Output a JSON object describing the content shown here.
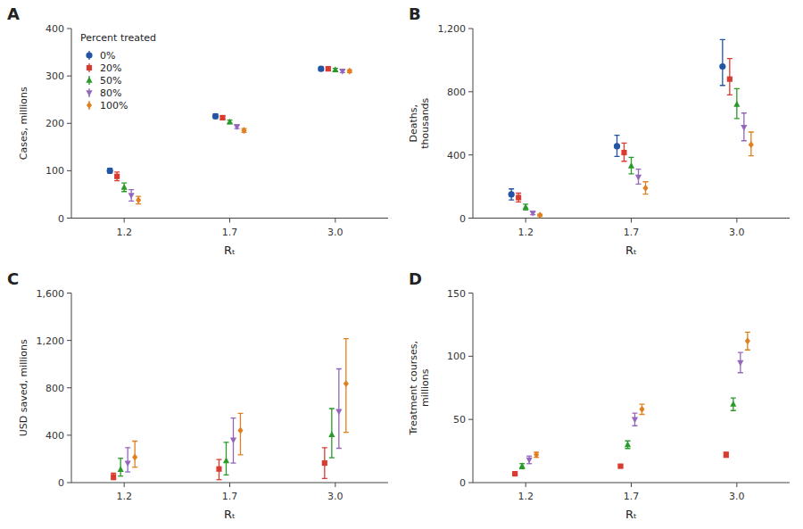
{
  "chart_data": [
    {
      "type": "scatter",
      "title": "A",
      "xlabel": "Rₜ",
      "ylabel": "Cases, millions",
      "categories": [
        "1.2",
        "1.7",
        "3.0"
      ],
      "ylim": [
        0,
        400
      ],
      "yticks": [
        0,
        100,
        200,
        300,
        400
      ],
      "grid": false,
      "legend": "upper left",
      "legend_title": "Percent treated",
      "series": [
        {
          "name": "0%",
          "color": "#2255a4",
          "marker": "circle",
          "values": [
            100,
            215,
            315
          ],
          "error_low": [
            5,
            5,
            4
          ],
          "error_high": [
            5,
            5,
            4
          ]
        },
        {
          "name": "20%",
          "color": "#d93b31",
          "marker": "square",
          "values": [
            88,
            212,
            315
          ],
          "error_low": [
            9,
            4,
            4
          ],
          "error_high": [
            9,
            4,
            4
          ]
        },
        {
          "name": "50%",
          "color": "#2a9a2a",
          "marker": "triangle-up",
          "values": [
            65,
            203,
            313
          ],
          "error_low": [
            9,
            4,
            3
          ],
          "error_high": [
            9,
            4,
            3
          ]
        },
        {
          "name": "80%",
          "color": "#9467bd",
          "marker": "triangle-down",
          "values": [
            48,
            193,
            310
          ],
          "error_low": [
            12,
            4,
            3
          ],
          "error_high": [
            12,
            4,
            3
          ]
        },
        {
          "name": "100%",
          "color": "#e08020",
          "marker": "diamond",
          "values": [
            38,
            185,
            310
          ],
          "error_low": [
            8,
            4,
            3
          ],
          "error_high": [
            8,
            4,
            3
          ]
        }
      ]
    },
    {
      "type": "scatter",
      "title": "B",
      "xlabel": "Rₜ",
      "ylabel": "Deaths,\nthousands",
      "categories": [
        "1.2",
        "1.7",
        "3.0"
      ],
      "ylim": [
        0,
        1200
      ],
      "yticks": [
        0,
        400,
        800,
        {
          "value": 1200,
          "label": "1,200"
        }
      ],
      "grid": false,
      "series": [
        {
          "name": "0%",
          "color": "#2255a4",
          "marker": "circle",
          "values": [
            150,
            455,
            960
          ],
          "error_low": [
            35,
            65,
            120
          ],
          "error_high": [
            35,
            70,
            170
          ]
        },
        {
          "name": "20%",
          "color": "#d93b31",
          "marker": "square",
          "values": [
            130,
            415,
            880
          ],
          "error_low": [
            28,
            55,
            100
          ],
          "error_high": [
            28,
            60,
            130
          ]
        },
        {
          "name": "50%",
          "color": "#2a9a2a",
          "marker": "triangle-up",
          "values": [
            70,
            330,
            720
          ],
          "error_low": [
            18,
            50,
            90
          ],
          "error_high": [
            18,
            55,
            100
          ]
        },
        {
          "name": "80%",
          "color": "#9467bd",
          "marker": "triangle-down",
          "values": [
            32,
            260,
            575
          ],
          "error_low": [
            10,
            45,
            85
          ],
          "error_high": [
            10,
            50,
            90
          ]
        },
        {
          "name": "100%",
          "color": "#e08020",
          "marker": "diamond",
          "values": [
            18,
            190,
            465
          ],
          "error_low": [
            6,
            38,
            70
          ],
          "error_high": [
            6,
            40,
            80
          ]
        }
      ]
    },
    {
      "type": "scatter",
      "title": "C",
      "xlabel": "Rₜ",
      "ylabel": "USD saved, millions",
      "categories": [
        "1.2",
        "1.7",
        "3.0"
      ],
      "ylim": [
        0,
        1600
      ],
      "yticks": [
        0,
        400,
        800,
        {
          "value": 1200,
          "label": "1,200"
        },
        {
          "value": 1600,
          "label": "1,600"
        }
      ],
      "grid": false,
      "series": [
        {
          "name": "20%",
          "color": "#d93b31",
          "marker": "square",
          "values": [
            50,
            115,
            165
          ],
          "error_low": [
            25,
            90,
            130
          ],
          "error_high": [
            30,
            80,
            130
          ]
        },
        {
          "name": "50%",
          "color": "#2a9a2a",
          "marker": "triangle-up",
          "values": [
            110,
            185,
            405
          ],
          "error_low": [
            55,
            120,
            195
          ],
          "error_high": [
            95,
            155,
            220
          ]
        },
        {
          "name": "80%",
          "color": "#9467bd",
          "marker": "triangle-down",
          "values": [
            165,
            360,
            600
          ],
          "error_low": [
            75,
            195,
            310
          ],
          "error_high": [
            130,
            185,
            360
          ]
        },
        {
          "name": "100%",
          "color": "#e08020",
          "marker": "diamond",
          "values": [
            215,
            440,
            835
          ],
          "error_low": [
            85,
            205,
            410
          ],
          "error_high": [
            135,
            145,
            380
          ]
        }
      ]
    },
    {
      "type": "scatter",
      "title": "D",
      "xlabel": "Rₜ",
      "ylabel": "Treatment courses,\nmillions",
      "categories": [
        "1.2",
        "1.7",
        "3.0"
      ],
      "ylim": [
        0,
        150
      ],
      "yticks": [
        0,
        50,
        100,
        150
      ],
      "grid": false,
      "series": [
        {
          "name": "20%",
          "color": "#d93b31",
          "marker": "square",
          "values": [
            7,
            13,
            22
          ],
          "error_low": [
            1,
            1,
            2
          ],
          "error_high": [
            1,
            1,
            2
          ]
        },
        {
          "name": "50%",
          "color": "#2a9a2a",
          "marker": "triangle-up",
          "values": [
            13,
            30,
            62
          ],
          "error_low": [
            2,
            3,
            5
          ],
          "error_high": [
            2,
            3,
            5
          ]
        },
        {
          "name": "80%",
          "color": "#9467bd",
          "marker": "triangle-down",
          "values": [
            18,
            50,
            95
          ],
          "error_low": [
            3,
            5,
            8
          ],
          "error_high": [
            3,
            5,
            8
          ]
        },
        {
          "name": "100%",
          "color": "#e08020",
          "marker": "diamond",
          "values": [
            22,
            58,
            112
          ],
          "error_low": [
            2,
            4,
            7
          ],
          "error_high": [
            2,
            4,
            7
          ]
        }
      ]
    }
  ]
}
